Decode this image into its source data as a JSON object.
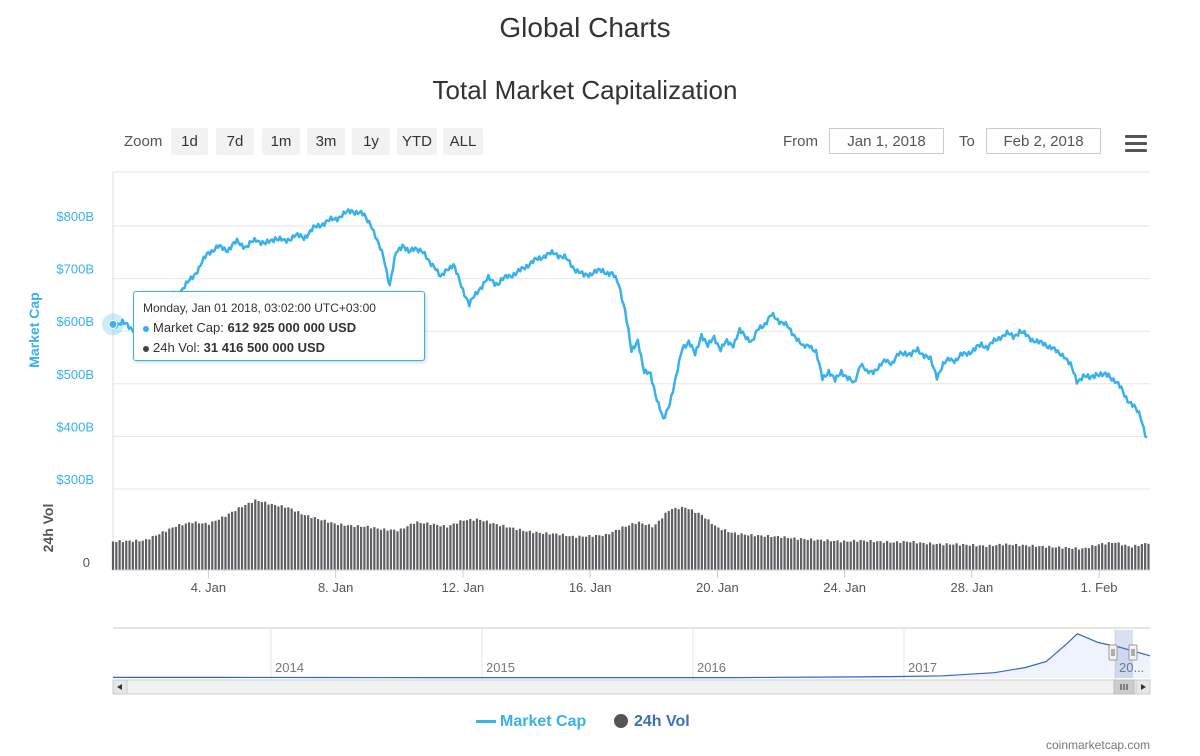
{
  "page": {
    "title": "Global Charts",
    "credit": "coinmarketcap.com"
  },
  "toolbar": {
    "zoom_label": "Zoom",
    "zoom_buttons": [
      "1d",
      "7d",
      "1m",
      "3m",
      "1y",
      "YTD",
      "ALL"
    ],
    "from_label": "From",
    "from_value": "Jan 1, 2018",
    "to_label": "To",
    "to_value": "Feb 2, 2018"
  },
  "tooltip": {
    "header": "Monday, Jan 01 2018, 03:02:00 UTC+03:00",
    "market_cap_label": "Market Cap:",
    "market_cap_value": "612 925 000 000 USD",
    "vol_label": "24h Vol:",
    "vol_value": "31 416 500 000 USD"
  },
  "colors": {
    "market_cap": "#39b1ea",
    "volume": "#434348",
    "navigator_line": "#3366cc"
  },
  "chart_data": {
    "type": "line",
    "title": "Total Market Capitalization",
    "y_axis": {
      "label": "Market Cap",
      "ticks": [
        {
          "value": 300,
          "label": "$300B"
        },
        {
          "value": 400,
          "label": "$400B"
        },
        {
          "value": 500,
          "label": "$500B"
        },
        {
          "value": 600,
          "label": "$600B"
        },
        {
          "value": 700,
          "label": "$700B"
        },
        {
          "value": 800,
          "label": "$800B"
        }
      ],
      "ylim": [
        300,
        880
      ]
    },
    "volume_axis": {
      "label": "24h Vol",
      "ticks": [
        {
          "value": 0,
          "label": "0"
        }
      ]
    },
    "x_axis": {
      "range_days": [
        0,
        32.6
      ],
      "ticks": [
        {
          "day": 3,
          "label": "4. Jan"
        },
        {
          "day": 7,
          "label": "8. Jan"
        },
        {
          "day": 11,
          "label": "12. Jan"
        },
        {
          "day": 15,
          "label": "16. Jan"
        },
        {
          "day": 19,
          "label": "20. Jan"
        },
        {
          "day": 23,
          "label": "24. Jan"
        },
        {
          "day": 27,
          "label": "28. Jan"
        },
        {
          "day": 31,
          "label": "1. Feb"
        }
      ]
    },
    "series": [
      {
        "name": "Market Cap",
        "unit": "B USD",
        "points": [
          [
            0,
            613
          ],
          [
            0.3,
            616
          ],
          [
            0.6,
            605
          ],
          [
            0.9,
            598
          ],
          [
            1.2,
            625
          ],
          [
            1.5,
            645
          ],
          [
            1.8,
            665
          ],
          [
            2.1,
            675
          ],
          [
            2.4,
            695
          ],
          [
            2.7,
            720
          ],
          [
            3.0,
            750
          ],
          [
            3.3,
            760
          ],
          [
            3.6,
            755
          ],
          [
            3.9,
            770
          ],
          [
            4.2,
            760
          ],
          [
            4.5,
            775
          ],
          [
            4.8,
            765
          ],
          [
            5.1,
            778
          ],
          [
            5.4,
            770
          ],
          [
            5.7,
            782
          ],
          [
            6.0,
            778
          ],
          [
            6.3,
            795
          ],
          [
            6.6,
            805
          ],
          [
            6.9,
            812
          ],
          [
            7.2,
            820
          ],
          [
            7.5,
            830
          ],
          [
            7.7,
            825
          ],
          [
            7.9,
            820
          ],
          [
            8.1,
            805
          ],
          [
            8.3,
            770
          ],
          [
            8.5,
            745
          ],
          [
            8.7,
            685
          ],
          [
            8.9,
            750
          ],
          [
            9.1,
            765
          ],
          [
            9.3,
            748
          ],
          [
            9.5,
            760
          ],
          [
            9.7,
            752
          ],
          [
            9.9,
            735
          ],
          [
            10.1,
            725
          ],
          [
            10.3,
            700
          ],
          [
            10.5,
            720
          ],
          [
            10.7,
            725
          ],
          [
            10.9,
            695
          ],
          [
            11.2,
            650
          ],
          [
            11.5,
            680
          ],
          [
            11.8,
            700
          ],
          [
            12.1,
            690
          ],
          [
            12.4,
            705
          ],
          [
            12.7,
            710
          ],
          [
            13.0,
            725
          ],
          [
            13.3,
            735
          ],
          [
            13.6,
            745
          ],
          [
            13.9,
            748
          ],
          [
            14.2,
            740
          ],
          [
            14.5,
            720
          ],
          [
            14.8,
            705
          ],
          [
            15.1,
            712
          ],
          [
            15.4,
            715
          ],
          [
            15.7,
            708
          ],
          [
            15.9,
            690
          ],
          [
            16.1,
            640
          ],
          [
            16.3,
            560
          ],
          [
            16.5,
            585
          ],
          [
            16.7,
            520
          ],
          [
            16.9,
            520
          ],
          [
            17.1,
            470
          ],
          [
            17.3,
            430
          ],
          [
            17.5,
            465
          ],
          [
            17.7,
            510
          ],
          [
            17.9,
            570
          ],
          [
            18.1,
            580
          ],
          [
            18.3,
            555
          ],
          [
            18.5,
            595
          ],
          [
            18.7,
            570
          ],
          [
            18.9,
            590
          ],
          [
            19.1,
            565
          ],
          [
            19.3,
            580
          ],
          [
            19.5,
            575
          ],
          [
            19.7,
            600
          ],
          [
            19.9,
            590
          ],
          [
            20.1,
            580
          ],
          [
            20.3,
            605
          ],
          [
            20.5,
            615
          ],
          [
            20.7,
            630
          ],
          [
            20.9,
            622
          ],
          [
            21.1,
            615
          ],
          [
            21.3,
            600
          ],
          [
            21.5,
            588
          ],
          [
            21.7,
            568
          ],
          [
            21.9,
            575
          ],
          [
            22.1,
            560
          ],
          [
            22.3,
            510
          ],
          [
            22.5,
            525
          ],
          [
            22.7,
            505
          ],
          [
            22.9,
            525
          ],
          [
            23.1,
            510
          ],
          [
            23.3,
            500
          ],
          [
            23.5,
            540
          ],
          [
            23.7,
            520
          ],
          [
            23.9,
            525
          ],
          [
            24.1,
            532
          ],
          [
            24.3,
            545
          ],
          [
            24.5,
            540
          ],
          [
            24.7,
            555
          ],
          [
            24.9,
            560
          ],
          [
            25.1,
            555
          ],
          [
            25.3,
            565
          ],
          [
            25.5,
            555
          ],
          [
            25.7,
            545
          ],
          [
            25.9,
            515
          ],
          [
            26.1,
            535
          ],
          [
            26.3,
            548
          ],
          [
            26.5,
            545
          ],
          [
            26.7,
            555
          ],
          [
            26.9,
            560
          ],
          [
            27.1,
            565
          ],
          [
            27.3,
            575
          ],
          [
            27.5,
            570
          ],
          [
            27.7,
            580
          ],
          [
            27.9,
            590
          ],
          [
            28.1,
            595
          ],
          [
            28.3,
            590
          ],
          [
            28.5,
            600
          ],
          [
            28.7,
            592
          ],
          [
            28.9,
            585
          ],
          [
            29.1,
            578
          ],
          [
            29.3,
            575
          ],
          [
            29.5,
            570
          ],
          [
            29.7,
            558
          ],
          [
            29.9,
            555
          ],
          [
            30.1,
            535
          ],
          [
            30.3,
            505
          ],
          [
            30.5,
            515
          ],
          [
            30.7,
            510
          ],
          [
            30.9,
            520
          ],
          [
            31.1,
            515
          ],
          [
            31.3,
            518
          ],
          [
            31.5,
            505
          ],
          [
            31.7,
            490
          ],
          [
            31.9,
            470
          ],
          [
            32.1,
            455
          ],
          [
            32.3,
            440
          ],
          [
            32.5,
            395
          ]
        ]
      },
      {
        "name": "24h Vol",
        "unit": "B USD",
        "points": [
          [
            0,
            31
          ],
          [
            1.0,
            32
          ],
          [
            1.5,
            40
          ],
          [
            2.0,
            48
          ],
          [
            2.5,
            52
          ],
          [
            3.0,
            50
          ],
          [
            3.5,
            58
          ],
          [
            4.0,
            68
          ],
          [
            4.5,
            76
          ],
          [
            5.0,
            71
          ],
          [
            5.5,
            68
          ],
          [
            6.0,
            60
          ],
          [
            6.5,
            55
          ],
          [
            7.0,
            50
          ],
          [
            7.5,
            48
          ],
          [
            8.0,
            47
          ],
          [
            8.5,
            44
          ],
          [
            9.0,
            43
          ],
          [
            9.5,
            52
          ],
          [
            10.0,
            50
          ],
          [
            10.5,
            47
          ],
          [
            11.0,
            54
          ],
          [
            11.5,
            55
          ],
          [
            12.0,
            50
          ],
          [
            12.5,
            46
          ],
          [
            13.0,
            42
          ],
          [
            13.5,
            40
          ],
          [
            14.0,
            39
          ],
          [
            14.5,
            36
          ],
          [
            15.0,
            37
          ],
          [
            15.5,
            38
          ],
          [
            16.0,
            46
          ],
          [
            16.5,
            52
          ],
          [
            17.0,
            47
          ],
          [
            17.5,
            66
          ],
          [
            18.0,
            68
          ],
          [
            18.5,
            60
          ],
          [
            19.0,
            46
          ],
          [
            19.5,
            40
          ],
          [
            20.0,
            38
          ],
          [
            20.5,
            37
          ],
          [
            21.0,
            36
          ],
          [
            21.5,
            34
          ],
          [
            22.0,
            33
          ],
          [
            22.5,
            32
          ],
          [
            23.0,
            31
          ],
          [
            23.5,
            32
          ],
          [
            24.0,
            31
          ],
          [
            24.5,
            30
          ],
          [
            25.0,
            31
          ],
          [
            25.5,
            29
          ],
          [
            26.0,
            28
          ],
          [
            26.5,
            28
          ],
          [
            27.0,
            27
          ],
          [
            27.5,
            26
          ],
          [
            28.0,
            28
          ],
          [
            28.5,
            27
          ],
          [
            29.0,
            26
          ],
          [
            29.5,
            25
          ],
          [
            30.0,
            24
          ],
          [
            30.5,
            23
          ],
          [
            31.0,
            28
          ],
          [
            31.5,
            30
          ],
          [
            32.0,
            25
          ],
          [
            32.6,
            30
          ]
        ]
      }
    ],
    "navigator": {
      "year_labels": [
        "2014",
        "2015",
        "2016",
        "2017",
        "20..."
      ],
      "points": [
        [
          0,
          10
        ],
        [
          0.1,
          10
        ],
        [
          0.2,
          9
        ],
        [
          0.3,
          8
        ],
        [
          0.4,
          7
        ],
        [
          0.5,
          7
        ],
        [
          0.6,
          8
        ],
        [
          0.7,
          18
        ],
        [
          0.75,
          25
        ],
        [
          0.8,
          40
        ],
        [
          0.85,
          95
        ],
        [
          0.88,
          190
        ],
        [
          0.9,
          300
        ],
        [
          0.92,
          620
        ],
        [
          0.93,
          800
        ],
        [
          0.95,
          640
        ],
        [
          0.97,
          560
        ],
        [
          1.0,
          400
        ]
      ]
    },
    "legend": [
      "Market Cap",
      "24h Vol"
    ]
  }
}
